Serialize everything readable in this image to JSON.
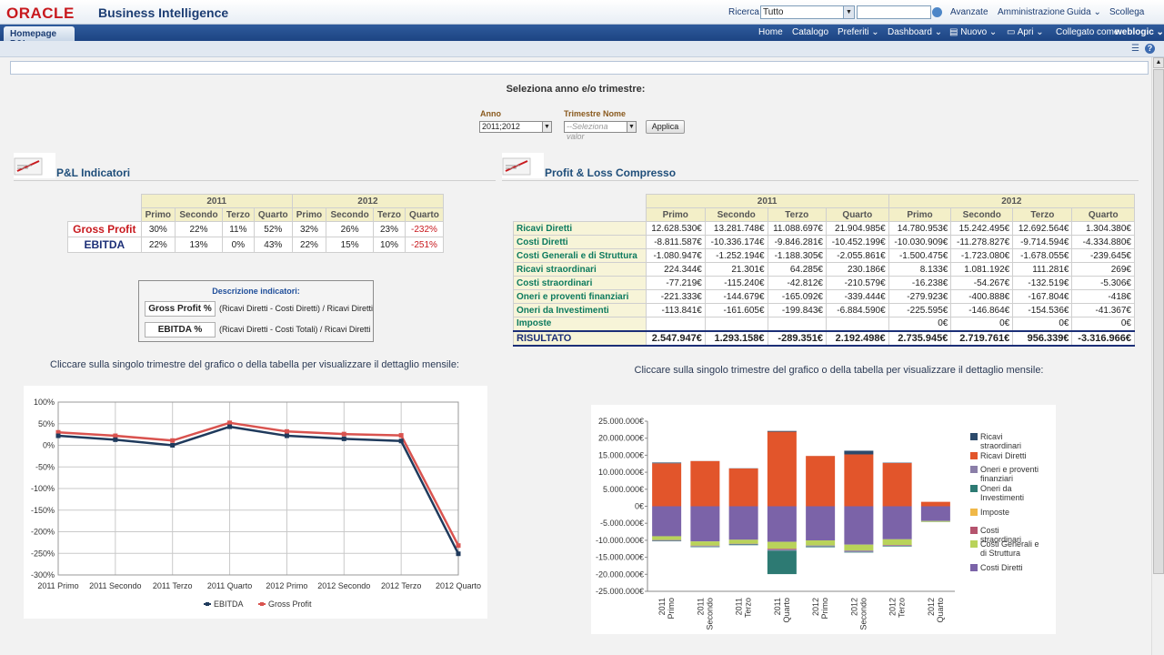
{
  "header": {
    "logo": "ORACLE",
    "product": "Business Intelligence",
    "search_label": "Ricerca",
    "search_scope": "Tutto",
    "search_value": "",
    "links": [
      "Avanzate",
      "Amministrazione",
      "Guida ⌄",
      "Scollega"
    ]
  },
  "nav": {
    "active_tab": "Homepage P&L",
    "links": [
      "Home",
      "Catalogo",
      "Preferiti ⌄",
      "Dashboard ⌄",
      "Nuovo ⌄",
      "Apri ⌄",
      "Collegato come"
    ],
    "user": "weblogic ⌄"
  },
  "prompt": {
    "title": "Seleziona anno e/o trimestre:",
    "anno_label": "Anno",
    "anno_value": "2011;2012",
    "trimestre_label": "Trimestre Nome",
    "trimestre_placeholder": "--Seleziona valor",
    "apply_label": "Applica"
  },
  "indicators": {
    "section_title": "P&L Indicatori",
    "years": [
      "2011",
      "2012"
    ],
    "quarters": [
      "Primo",
      "Secondo",
      "Terzo",
      "Quarto",
      "Primo",
      "Secondo",
      "Terzo",
      "Quarto"
    ],
    "rows": [
      {
        "label": "Gross Profit",
        "values": [
          "30%",
          "22%",
          "11%",
          "52%",
          "32%",
          "26%",
          "23%",
          "-232%"
        ]
      },
      {
        "label": "EBITDA",
        "values": [
          "22%",
          "13%",
          "0%",
          "43%",
          "22%",
          "15%",
          "10%",
          "-251%"
        ]
      }
    ]
  },
  "description": {
    "title": "Descrizione indicatori:",
    "items": [
      {
        "key": "Gross Profit %",
        "value": "(Ricavi Diretti - Costi Diretti) / Ricavi Diretti"
      },
      {
        "key": "EBITDA %",
        "value": "(Ricavi Diretti - Costi Totali) / Ricavi Diretti"
      }
    ]
  },
  "pl": {
    "section_title": "Profit & Loss Compresso",
    "years": [
      "2011",
      "2012"
    ],
    "quarters": [
      "Primo",
      "Secondo",
      "Terzo",
      "Quarto",
      "Primo",
      "Secondo",
      "Terzo",
      "Quarto"
    ],
    "rows": [
      {
        "label": "Ricavi Diretti",
        "values": [
          "12.628.530€",
          "13.281.748€",
          "11.088.697€",
          "21.904.985€",
          "14.780.953€",
          "15.242.495€",
          "12.692.564€",
          "1.304.380€"
        ]
      },
      {
        "label": "Costi Diretti",
        "values": [
          "-8.811.587€",
          "-10.336.174€",
          "-9.846.281€",
          "-10.452.199€",
          "-10.030.909€",
          "-11.278.827€",
          "-9.714.594€",
          "-4.334.880€"
        ]
      },
      {
        "label": "Costi Generali e di Struttura",
        "values": [
          "-1.080.947€",
          "-1.252.194€",
          "-1.188.305€",
          "-2.055.861€",
          "-1.500.475€",
          "-1.723.080€",
          "-1.678.055€",
          "-239.645€"
        ]
      },
      {
        "label": "Ricavi straordinari",
        "values": [
          "224.344€",
          "21.301€",
          "64.285€",
          "230.186€",
          "8.133€",
          "1.081.192€",
          "111.281€",
          "269€"
        ]
      },
      {
        "label": "Costi straordinari",
        "values": [
          "-77.219€",
          "-115.240€",
          "-42.812€",
          "-210.579€",
          "-16.238€",
          "-54.267€",
          "-132.519€",
          "-5.306€"
        ]
      },
      {
        "label": "Oneri e proventi finanziari",
        "values": [
          "-221.333€",
          "-144.679€",
          "-165.092€",
          "-339.444€",
          "-279.923€",
          "-400.888€",
          "-167.804€",
          "-418€"
        ]
      },
      {
        "label": "Oneri da Investimenti",
        "values": [
          "-113.841€",
          "-161.605€",
          "-199.843€",
          "-6.884.590€",
          "-225.595€",
          "-146.864€",
          "-154.536€",
          "-41.367€"
        ]
      },
      {
        "label": "Imposte",
        "values": [
          "",
          "",
          "",
          "",
          "0€",
          "0€",
          "0€",
          "0€"
        ]
      }
    ],
    "total": {
      "label": "RISULTATO",
      "values": [
        "2.547.947€",
        "1.293.158€",
        "-289.351€",
        "2.192.498€",
        "2.735.945€",
        "2.719.761€",
        "956.339€",
        "-3.316.966€"
      ]
    }
  },
  "hint_text": "Cliccare sulla singolo trimestre del grafico o della tabella per visualizzare il dettaglio mensile:",
  "chart_data": [
    {
      "type": "line",
      "categories": [
        "2011 Primo",
        "2011 Secondo",
        "2011 Terzo",
        "2011 Quarto",
        "2012 Primo",
        "2012 Secondo",
        "2012 Terzo",
        "2012 Quarto"
      ],
      "series": [
        {
          "name": "EBITDA",
          "values": [
            22,
            13,
            0,
            43,
            22,
            15,
            10,
            -251
          ],
          "color": "#1f3a5c"
        },
        {
          "name": "Gross Profit",
          "values": [
            30,
            22,
            11,
            52,
            32,
            26,
            23,
            -232
          ],
          "color": "#d9534f"
        }
      ],
      "ylim": [
        -300,
        100
      ],
      "yticks": [
        "100%",
        "50%",
        "0%",
        "-50%",
        "-100%",
        "-150%",
        "-200%",
        "-250%",
        "-300%"
      ],
      "grid": true,
      "legend": "bottom"
    },
    {
      "type": "bar",
      "stacked": true,
      "categories": [
        "2011 Primo",
        "2011 Secondo",
        "2011 Terzo",
        "2011 Quarto",
        "2012 Primo",
        "2012 Secondo",
        "2012 Terzo",
        "2012 Quarto"
      ],
      "series": [
        {
          "name": "Ricavi straordinari",
          "color": "#2c4a6b",
          "values": [
            224344,
            21301,
            64285,
            230186,
            8133,
            1081192,
            111281,
            269
          ]
        },
        {
          "name": "Ricavi Diretti",
          "color": "#e2552b",
          "values": [
            12628530,
            13281748,
            11088697,
            21904985,
            14780953,
            15242495,
            12692564,
            1304380
          ]
        },
        {
          "name": "Oneri e proventi finanziari",
          "color": "#8a7ea8",
          "values": [
            -221333,
            -144679,
            -165092,
            -339444,
            -279923,
            -400888,
            -167804,
            -418
          ]
        },
        {
          "name": "Oneri da Investimenti",
          "color": "#2d7a73",
          "values": [
            -113841,
            -161605,
            -199843,
            -6884590,
            -225595,
            -146864,
            -154536,
            -41367
          ]
        },
        {
          "name": "Imposte",
          "color": "#f0b848",
          "values": [
            0,
            0,
            0,
            0,
            0,
            0,
            0,
            0
          ]
        },
        {
          "name": "Costi straordinari",
          "color": "#b5546e",
          "values": [
            -77219,
            -115240,
            -42812,
            -210579,
            -16238,
            -54267,
            -132519,
            -5306
          ]
        },
        {
          "name": "Costi Generali e di Struttura",
          "color": "#b9d35a",
          "values": [
            -1080947,
            -1252194,
            -1188305,
            -2055861,
            -1500475,
            -1723080,
            -1678055,
            -239645
          ]
        },
        {
          "name": "Costi Diretti",
          "color": "#7b63a8",
          "values": [
            -8811587,
            -10336174,
            -9846281,
            -10452199,
            -10030909,
            -11278827,
            -9714594,
            -4334880
          ]
        }
      ],
      "ylim": [
        -25000000,
        25000000
      ],
      "yticks": [
        "25.000.000€",
        "20.000.000€",
        "15.000.000€",
        "10.000.000€",
        "5.000.000€",
        "0€",
        "-5.000.000€",
        "-10.000.000€",
        "-15.000.000€",
        "-20.000.000€",
        "-25.000.000€"
      ],
      "legend": "right"
    }
  ],
  "colors": {
    "nav_blue": "#1d4483",
    "oracle_red": "#c8191e",
    "header_text": "#1c3d73"
  }
}
